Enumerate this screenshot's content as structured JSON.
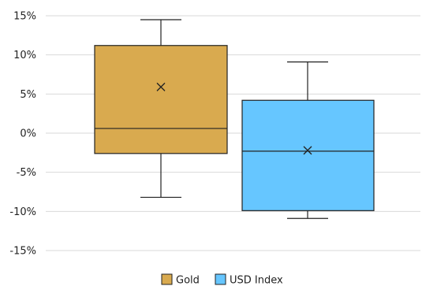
{
  "chart_data": {
    "type": "box",
    "y_ticks": [
      "15%",
      "10%",
      "5%",
      "0%",
      "-5%",
      "-10%",
      "-15%"
    ],
    "ylim": [
      -15,
      15
    ],
    "grid": true,
    "legend_position": "bottom",
    "series": [
      {
        "name": "Gold",
        "color": "#D9AA4F",
        "min": -8.2,
        "q1": -2.6,
        "median": 0.6,
        "q3": 11.2,
        "max": 14.5,
        "mean": 5.9
      },
      {
        "name": "USD Index",
        "color": "#66C6FF",
        "min": -10.9,
        "q1": -9.9,
        "median": -2.3,
        "q3": 4.2,
        "max": 9.1,
        "mean": -2.2
      }
    ]
  }
}
